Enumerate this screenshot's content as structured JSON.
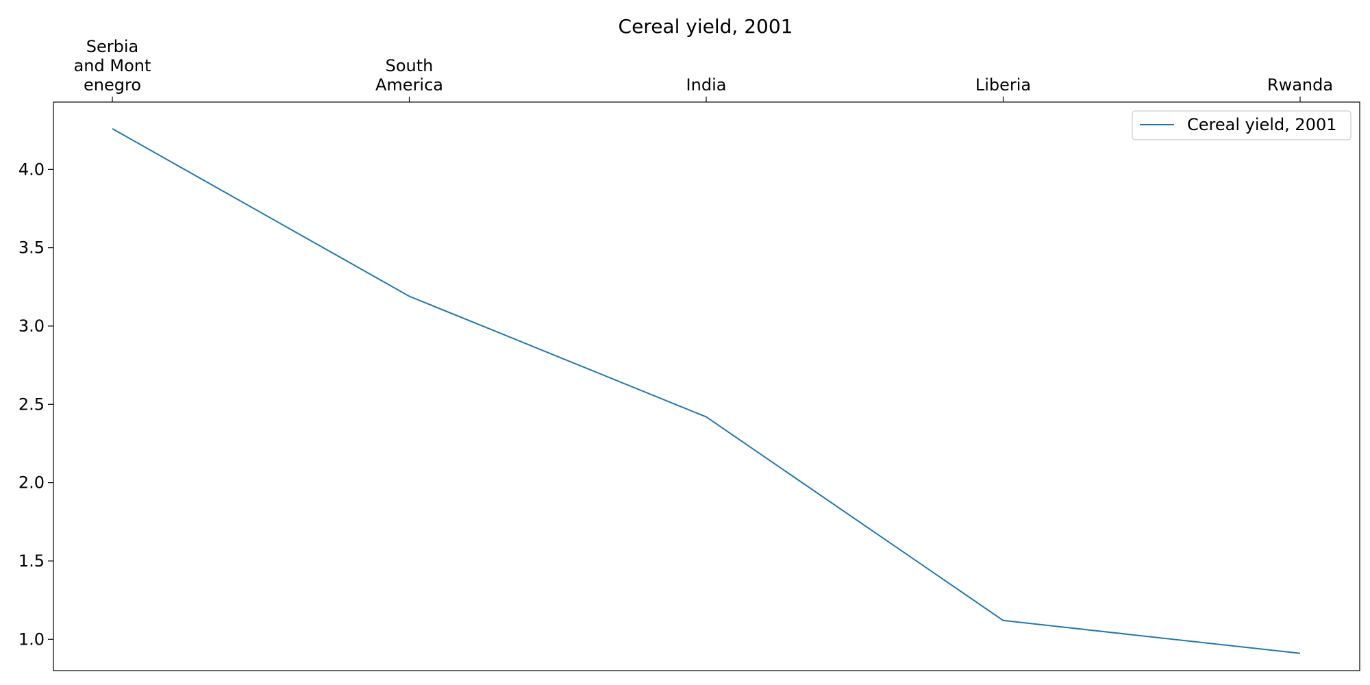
{
  "chart_data": {
    "type": "line",
    "title": "Cereal yield, 2001",
    "xlabel": "",
    "ylabel": "",
    "x_axis_position": "top",
    "categories": [
      "Serbia and Montenegro",
      "South America",
      "India",
      "Liberia",
      "Rwanda"
    ],
    "category_tick_lines": [
      [
        "Serbia",
        "and Mont",
        "enegro"
      ],
      [
        "South",
        "America"
      ],
      [
        "India"
      ],
      [
        "Liberia"
      ],
      [
        "Rwanda"
      ]
    ],
    "series": [
      {
        "name": "Cereal yield, 2001",
        "values": [
          4.26,
          3.19,
          2.42,
          1.12,
          0.91
        ],
        "color": "#1f77b4"
      }
    ],
    "ylim": [
      0.8,
      4.43
    ],
    "yticks": [
      1.0,
      1.5,
      2.0,
      2.5,
      3.0,
      3.5,
      4.0
    ],
    "ytick_labels": [
      "1.0",
      "1.5",
      "2.0",
      "2.5",
      "3.0",
      "3.5",
      "4.0"
    ],
    "grid": false,
    "legend_position": "top-right"
  }
}
